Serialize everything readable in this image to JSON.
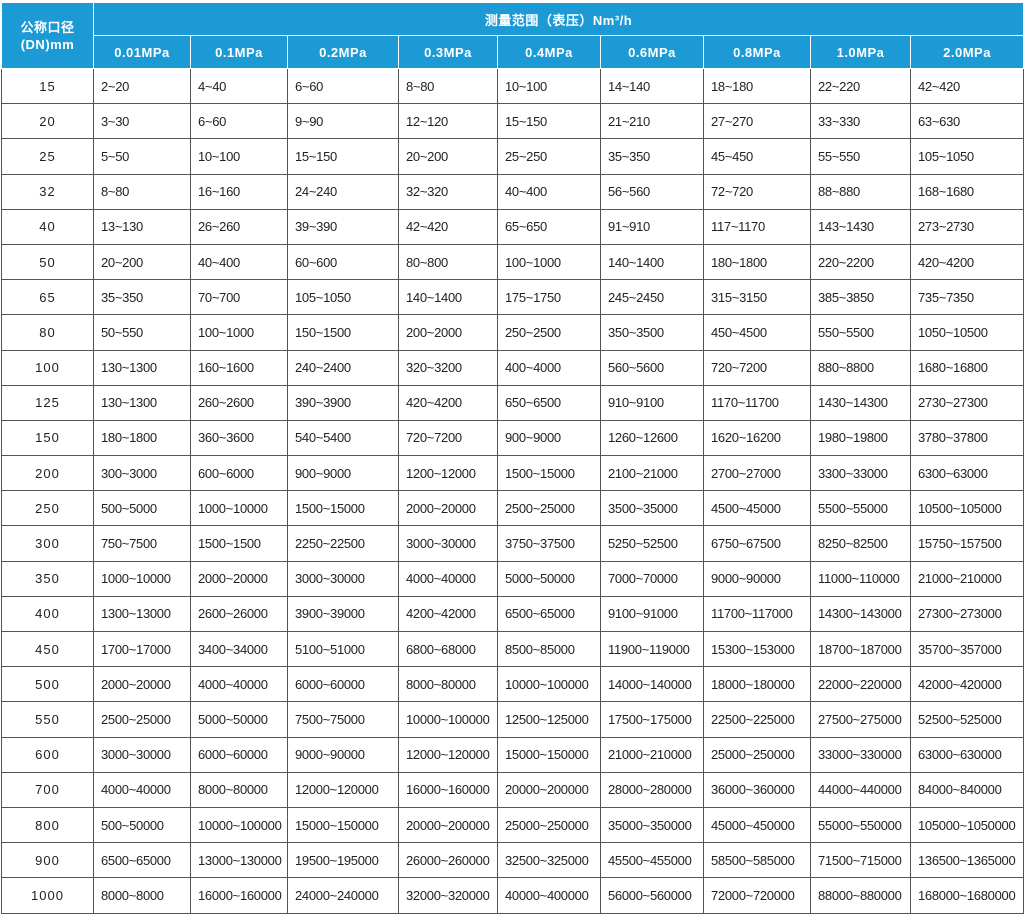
{
  "table": {
    "corner": [
      "公称口径",
      "(DN)mm"
    ],
    "span_title": "测量范围（表压）Nm³/h",
    "columns": [
      "0.01MPa",
      "0.1MPa",
      "0.2MPa",
      "0.3MPa",
      "0.4MPa",
      "0.6MPa",
      "0.8MPa",
      "1.0MPa",
      "2.0MPa"
    ],
    "rows": [
      [
        "15",
        "2~20",
        "4~40",
        "6~60",
        "8~80",
        "10~100",
        "14~140",
        "18~180",
        "22~220",
        "42~420"
      ],
      [
        "20",
        "3~30",
        "6~60",
        "9~90",
        "12~120",
        "15~150",
        "21~210",
        "27~270",
        "33~330",
        "63~630"
      ],
      [
        "25",
        "5~50",
        "10~100",
        "15~150",
        "20~200",
        "25~250",
        "35~350",
        "45~450",
        "55~550",
        "105~1050"
      ],
      [
        "32",
        "8~80",
        "16~160",
        "24~240",
        "32~320",
        "40~400",
        "56~560",
        "72~720",
        "88~880",
        "168~1680"
      ],
      [
        "40",
        "13~130",
        "26~260",
        "39~390",
        "42~420",
        "65~650",
        "91~910",
        "117~1170",
        "143~1430",
        "273~2730"
      ],
      [
        "50",
        "20~200",
        "40~400",
        "60~600",
        "80~800",
        "100~1000",
        "140~1400",
        "180~1800",
        "220~2200",
        "420~4200"
      ],
      [
        "65",
        "35~350",
        "70~700",
        "105~1050",
        "140~1400",
        "175~1750",
        "245~2450",
        "315~3150",
        "385~3850",
        "735~7350"
      ],
      [
        "80",
        "50~550",
        "100~1000",
        "150~1500",
        "200~2000",
        "250~2500",
        "350~3500",
        "450~4500",
        "550~5500",
        "1050~10500"
      ],
      [
        "100",
        "130~1300",
        "160~1600",
        "240~2400",
        "320~3200",
        "400~4000",
        "560~5600",
        "720~7200",
        "880~8800",
        "1680~16800"
      ],
      [
        "125",
        "130~1300",
        "260~2600",
        "390~3900",
        "420~4200",
        "650~6500",
        "910~9100",
        "1170~11700",
        "1430~14300",
        "2730~27300"
      ],
      [
        "150",
        "180~1800",
        "360~3600",
        "540~5400",
        "720~7200",
        "900~9000",
        "1260~12600",
        "1620~16200",
        "1980~19800",
        "3780~37800"
      ],
      [
        "200",
        "300~3000",
        "600~6000",
        "900~9000",
        "1200~12000",
        "1500~15000",
        "2100~21000",
        "2700~27000",
        "3300~33000",
        "6300~63000"
      ],
      [
        "250",
        "500~5000",
        "1000~10000",
        "1500~15000",
        "2000~20000",
        "2500~25000",
        "3500~35000",
        "4500~45000",
        "5500~55000",
        "10500~105000"
      ],
      [
        "300",
        "750~7500",
        "1500~1500",
        "2250~22500",
        "3000~30000",
        "3750~37500",
        "5250~52500",
        "6750~67500",
        "8250~82500",
        "15750~157500"
      ],
      [
        "350",
        "1000~10000",
        "2000~20000",
        "3000~30000",
        "4000~40000",
        "5000~50000",
        "7000~70000",
        "9000~90000",
        "11000~110000",
        "21000~210000"
      ],
      [
        "400",
        "1300~13000",
        "2600~26000",
        "3900~39000",
        "4200~42000",
        "6500~65000",
        "9100~91000",
        "11700~117000",
        "14300~143000",
        "27300~273000"
      ],
      [
        "450",
        "1700~17000",
        "3400~34000",
        "5100~51000",
        "6800~68000",
        "8500~85000",
        "11900~119000",
        "15300~153000",
        "18700~187000",
        "35700~357000"
      ],
      [
        "500",
        "2000~20000",
        "4000~40000",
        "6000~60000",
        "8000~80000",
        "10000~100000",
        "14000~140000",
        "18000~180000",
        "22000~220000",
        "42000~420000"
      ],
      [
        "550",
        "2500~25000",
        "5000~50000",
        "7500~75000",
        "10000~100000",
        "12500~125000",
        "17500~175000",
        "22500~225000",
        "27500~275000",
        "52500~525000"
      ],
      [
        "600",
        "3000~30000",
        "6000~60000",
        "9000~90000",
        "12000~120000",
        "15000~150000",
        "21000~210000",
        "25000~250000",
        "33000~330000",
        "63000~630000"
      ],
      [
        "700",
        "4000~40000",
        "8000~80000",
        "12000~120000",
        "16000~160000",
        "20000~200000",
        "28000~280000",
        "36000~360000",
        "44000~440000",
        "84000~840000"
      ],
      [
        "800",
        "500~50000",
        "10000~100000",
        "15000~150000",
        "20000~200000",
        "25000~250000",
        "35000~350000",
        "45000~450000",
        "55000~550000",
        "105000~1050000"
      ],
      [
        "900",
        "6500~65000",
        "13000~130000",
        "19500~195000",
        "26000~260000",
        "32500~325000",
        "45500~455000",
        "58500~585000",
        "71500~715000",
        "136500~1365000"
      ],
      [
        "1000",
        "8000~8000",
        "16000~160000",
        "24000~240000",
        "32000~320000",
        "40000~400000",
        "56000~560000",
        "72000~720000",
        "88000~880000",
        "168000~1680000"
      ]
    ]
  }
}
